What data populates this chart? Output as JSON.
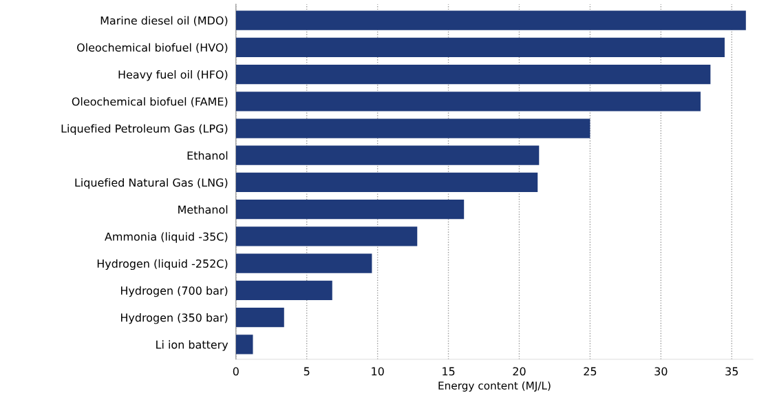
{
  "chart_data": {
    "type": "bar",
    "orientation": "horizontal",
    "xlabel": "Energy content (MJ/L)",
    "categories": [
      "Marine diesel oil (MDO)",
      "Oleochemical biofuel (HVO)",
      "Heavy fuel oil (HFO)",
      "Oleochemical biofuel (FAME)",
      "Liquefied Petroleum Gas (LPG)",
      "Ethanol",
      "Liquefied Natural Gas (LNG)",
      "Methanol",
      "Ammonia (liquid -35C)",
      "Hydrogen (liquid -252C)",
      "Hydrogen (700 bar)",
      "Hydrogen (350 bar)",
      "Li ion battery"
    ],
    "values": [
      36.0,
      34.5,
      33.5,
      32.8,
      25.0,
      21.4,
      21.3,
      16.1,
      12.8,
      9.6,
      6.8,
      3.4,
      1.2
    ],
    "color": "#1f3a7a",
    "xlim": [
      0,
      36.5
    ],
    "xticks": [
      0,
      5,
      10,
      15,
      20,
      25,
      30,
      35
    ],
    "grid": "x",
    "legend": false
  }
}
